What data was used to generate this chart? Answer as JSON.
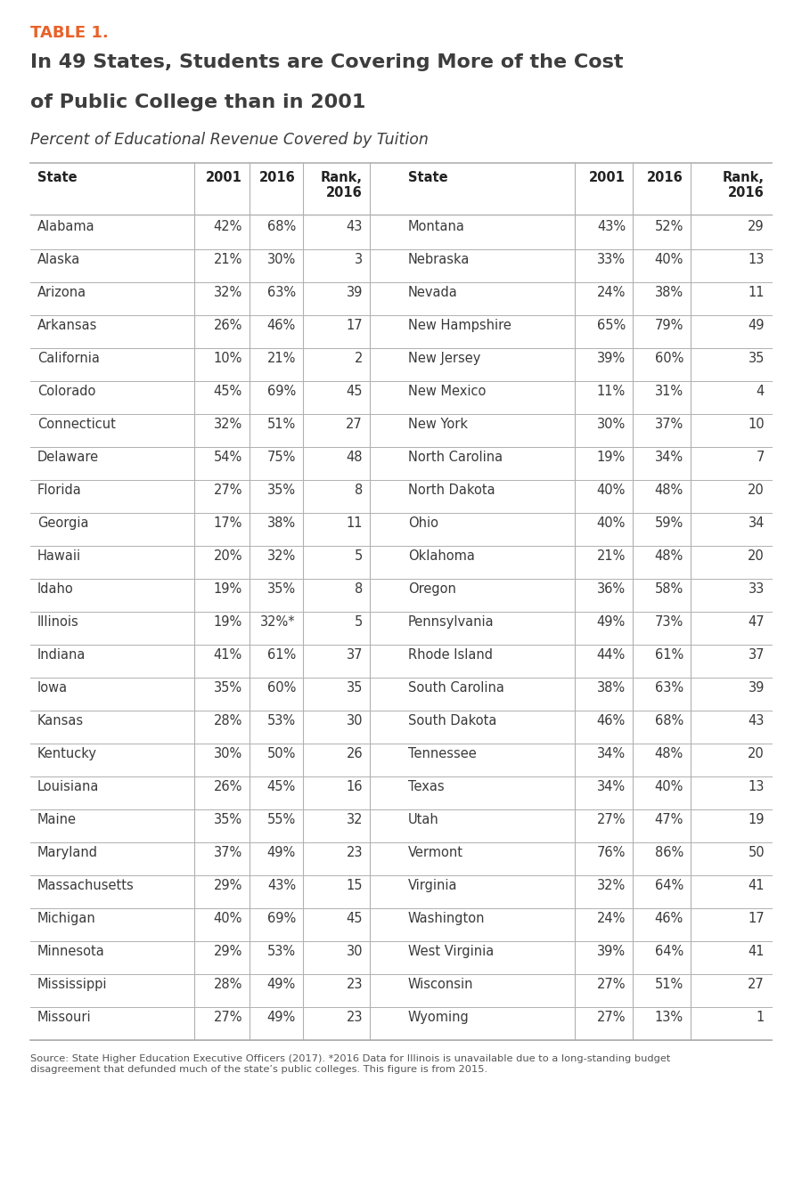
{
  "table_label": "TABLE 1.",
  "title_line1": "In 49 States, Students are Covering More of the Cost",
  "title_line2": "of Public College than in 2001",
  "subtitle": "Percent of Educational Revenue Covered by Tuition",
  "col_headers_left": [
    "State",
    "2001",
    "2016",
    "Rank,\n2016"
  ],
  "col_headers_right": [
    "State",
    "2001",
    "2016",
    "Rank,\n2016"
  ],
  "left_data": [
    [
      "Alabama",
      "42%",
      "68%",
      "43"
    ],
    [
      "Alaska",
      "21%",
      "30%",
      "3"
    ],
    [
      "Arizona",
      "32%",
      "63%",
      "39"
    ],
    [
      "Arkansas",
      "26%",
      "46%",
      "17"
    ],
    [
      "California",
      "10%",
      "21%",
      "2"
    ],
    [
      "Colorado",
      "45%",
      "69%",
      "45"
    ],
    [
      "Connecticut",
      "32%",
      "51%",
      "27"
    ],
    [
      "Delaware",
      "54%",
      "75%",
      "48"
    ],
    [
      "Florida",
      "27%",
      "35%",
      "8"
    ],
    [
      "Georgia",
      "17%",
      "38%",
      "11"
    ],
    [
      "Hawaii",
      "20%",
      "32%",
      "5"
    ],
    [
      "Idaho",
      "19%",
      "35%",
      "8"
    ],
    [
      "Illinois",
      "19%",
      "32%*",
      "5"
    ],
    [
      "Indiana",
      "41%",
      "61%",
      "37"
    ],
    [
      "Iowa",
      "35%",
      "60%",
      "35"
    ],
    [
      "Kansas",
      "28%",
      "53%",
      "30"
    ],
    [
      "Kentucky",
      "30%",
      "50%",
      "26"
    ],
    [
      "Louisiana",
      "26%",
      "45%",
      "16"
    ],
    [
      "Maine",
      "35%",
      "55%",
      "32"
    ],
    [
      "Maryland",
      "37%",
      "49%",
      "23"
    ],
    [
      "Massachusetts",
      "29%",
      "43%",
      "15"
    ],
    [
      "Michigan",
      "40%",
      "69%",
      "45"
    ],
    [
      "Minnesota",
      "29%",
      "53%",
      "30"
    ],
    [
      "Mississippi",
      "28%",
      "49%",
      "23"
    ],
    [
      "Missouri",
      "27%",
      "49%",
      "23"
    ]
  ],
  "right_data": [
    [
      "Montana",
      "43%",
      "52%",
      "29"
    ],
    [
      "Nebraska",
      "33%",
      "40%",
      "13"
    ],
    [
      "Nevada",
      "24%",
      "38%",
      "11"
    ],
    [
      "New Hampshire",
      "65%",
      "79%",
      "49"
    ],
    [
      "New Jersey",
      "39%",
      "60%",
      "35"
    ],
    [
      "New Mexico",
      "11%",
      "31%",
      "4"
    ],
    [
      "New York",
      "30%",
      "37%",
      "10"
    ],
    [
      "North Carolina",
      "19%",
      "34%",
      "7"
    ],
    [
      "North Dakota",
      "40%",
      "48%",
      "20"
    ],
    [
      "Ohio",
      "40%",
      "59%",
      "34"
    ],
    [
      "Oklahoma",
      "21%",
      "48%",
      "20"
    ],
    [
      "Oregon",
      "36%",
      "58%",
      "33"
    ],
    [
      "Pennsylvania",
      "49%",
      "73%",
      "47"
    ],
    [
      "Rhode Island",
      "44%",
      "61%",
      "37"
    ],
    [
      "South Carolina",
      "38%",
      "63%",
      "39"
    ],
    [
      "South Dakota",
      "46%",
      "68%",
      "43"
    ],
    [
      "Tennessee",
      "34%",
      "48%",
      "20"
    ],
    [
      "Texas",
      "34%",
      "40%",
      "13"
    ],
    [
      "Utah",
      "27%",
      "47%",
      "19"
    ],
    [
      "Vermont",
      "76%",
      "86%",
      "50"
    ],
    [
      "Virginia",
      "32%",
      "64%",
      "41"
    ],
    [
      "Washington",
      "24%",
      "46%",
      "17"
    ],
    [
      "West Virginia",
      "39%",
      "64%",
      "41"
    ],
    [
      "Wisconsin",
      "27%",
      "51%",
      "27"
    ],
    [
      "Wyoming",
      "27%",
      "13%",
      "1"
    ]
  ],
  "footnote": "Source: State Higher Education Executive Officers (2017). *2016 Data for Illinois is unavailable due to a long-standing budget\ndisagreement that defunded much of the state’s public colleges. This figure is from 2015.",
  "table_label_color": "#e8622a",
  "title_color": "#3d3d3d",
  "header_color": "#222222",
  "row_color": "#3a3a3a",
  "bg_color": "#ffffff",
  "line_color": "#b0b0b0",
  "footnote_color": "#555555"
}
